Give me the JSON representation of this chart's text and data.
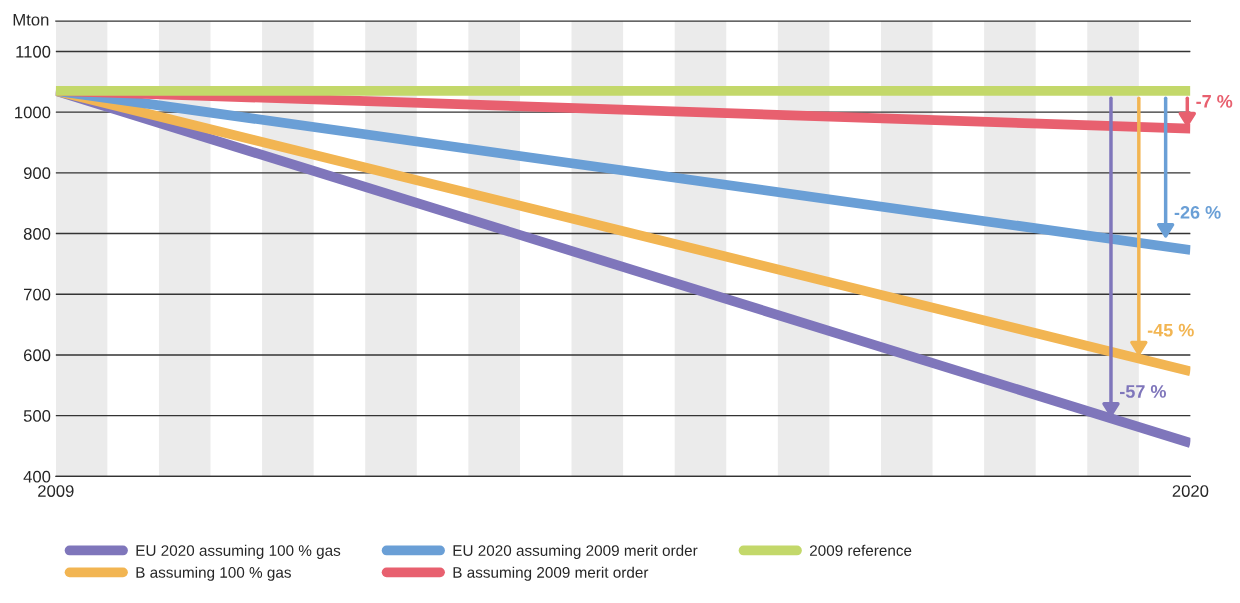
{
  "chart_data": {
    "type": "line",
    "x": [
      2009,
      2020
    ],
    "series": [
      {
        "name": "EU 2020 assuming 100 % gas",
        "color": "#7f76bb",
        "values": [
          1035,
          455
        ]
      },
      {
        "name": "B assuming 100 % gas",
        "color": "#f2b552",
        "values": [
          1035,
          573
        ]
      },
      {
        "name": "EU 2020 assuming 2009 merit order",
        "color": "#6a9fd6",
        "values": [
          1035,
          773
        ]
      },
      {
        "name": "B assuming 2009 merit order",
        "color": "#e8606f",
        "values": [
          1035,
          973
        ]
      },
      {
        "name": "2009 reference",
        "color": "#c3d86a",
        "values": [
          1035,
          1035
        ]
      }
    ],
    "ylabel": "Mton",
    "xlim": [
      2009,
      2020
    ],
    "xticks": [
      2009,
      2020
    ],
    "ylim": [
      400,
      1150
    ],
    "yticks": [
      400,
      500,
      600,
      700,
      800,
      900,
      1000,
      1100
    ],
    "grid": "y",
    "legend": "bottom",
    "marker": "none",
    "line_style": "solid",
    "bands": [
      {
        "axis": "x",
        "from": 2009,
        "to": 2009.5,
        "color": "#ebebeb"
      },
      {
        "axis": "x",
        "from": 2010,
        "to": 2010.5,
        "color": "#ebebeb"
      },
      {
        "axis": "x",
        "from": 2011,
        "to": 2011.5,
        "color": "#ebebeb"
      },
      {
        "axis": "x",
        "from": 2012,
        "to": 2012.5,
        "color": "#ebebeb"
      },
      {
        "axis": "x",
        "from": 2013,
        "to": 2013.5,
        "color": "#ebebeb"
      },
      {
        "axis": "x",
        "from": 2014,
        "to": 2014.5,
        "color": "#ebebeb"
      },
      {
        "axis": "x",
        "from": 2015,
        "to": 2015.5,
        "color": "#ebebeb"
      },
      {
        "axis": "x",
        "from": 2016,
        "to": 2016.5,
        "color": "#ebebeb"
      },
      {
        "axis": "x",
        "from": 2017,
        "to": 2017.5,
        "color": "#ebebeb"
      },
      {
        "axis": "x",
        "from": 2018,
        "to": 2018.5,
        "color": "#ebebeb"
      },
      {
        "axis": "x",
        "from": 2019,
        "to": 2019.5,
        "color": "#ebebeb"
      }
    ],
    "annotations": [
      {
        "text": "-57 %",
        "x": 2019.23,
        "y": 496
      },
      {
        "text": "-45 %",
        "x": 2019.5,
        "y": 597
      },
      {
        "text": "-26 %",
        "x": 2019.76,
        "y": 791
      },
      {
        "text": "-7 %",
        "x": 2019.97,
        "y": 974
      }
    ]
  }
}
